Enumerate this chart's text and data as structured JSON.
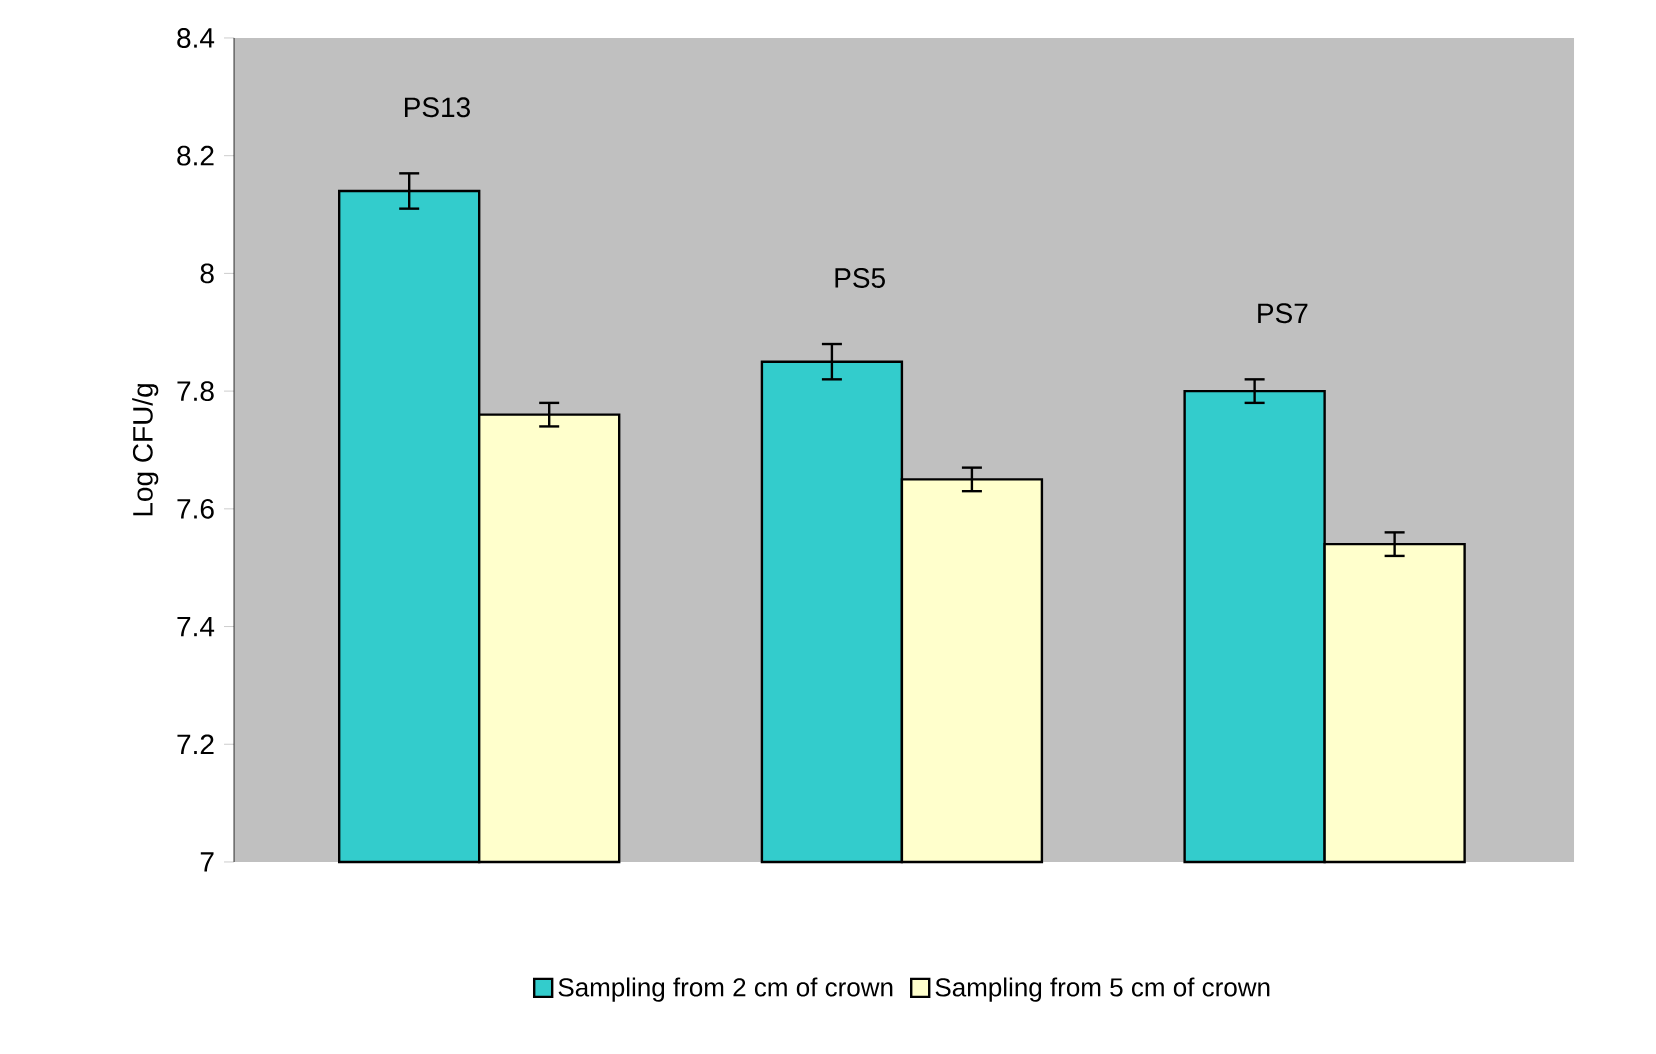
{
  "chart_data": {
    "type": "bar",
    "ylabel": "Log CFU/g",
    "categories": [
      null,
      null,
      null
    ],
    "series": [
      {
        "name": "Sampling from 2 cm of crown",
        "color": "#33cccc",
        "values": [
          8.14,
          7.85,
          7.8
        ],
        "errors": [
          0.03,
          0.03,
          0.02
        ]
      },
      {
        "name": "Sampling from 5 cm of crown",
        "color": "#ffffcc",
        "values": [
          7.76,
          7.65,
          7.54
        ],
        "errors": [
          0.02,
          0.02,
          0.02
        ]
      }
    ],
    "annotations": [
      "PS13",
      "PS5",
      "PS7"
    ],
    "ylim": [
      7,
      8.4
    ],
    "yticks": [
      7,
      7.2,
      7.4,
      7.6,
      7.8,
      8,
      8.2,
      8.4
    ],
    "legend": "bottom",
    "grid": false
  }
}
